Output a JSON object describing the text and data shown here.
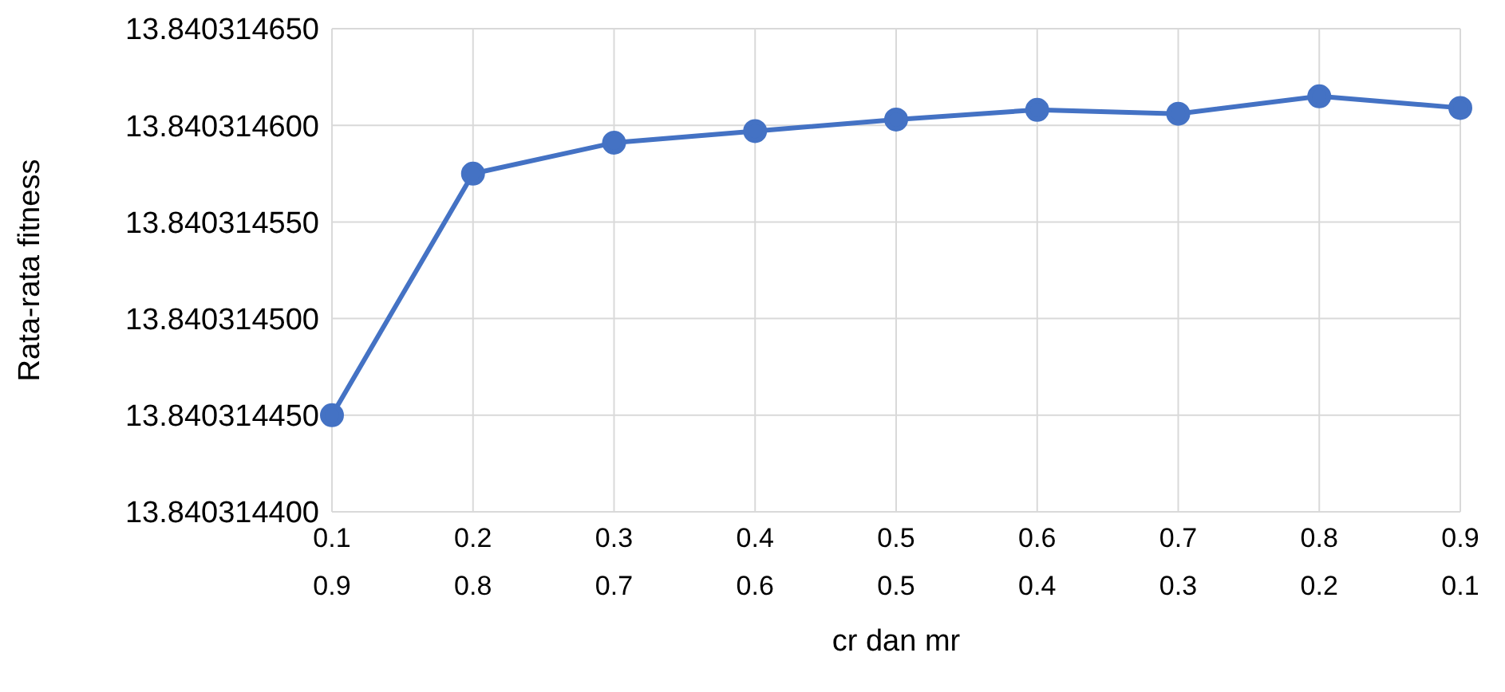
{
  "chart_data": {
    "type": "line",
    "xlabel": "cr dan mr",
    "ylabel": "Rata-rata fitness",
    "categories": [
      "0.1\n0.9",
      "0.2\n0.8",
      "0.3\n0.7",
      "0.4\n0.6",
      "0.5\n0.5",
      "0.6\n0.4",
      "0.7\n0.3",
      "0.8\n0.2",
      "0.9\n0.1"
    ],
    "series": [
      {
        "color": "#4472c4",
        "values": [
          13.84031445,
          13.840314575,
          13.840314591,
          13.840314597,
          13.840314603,
          13.840314608,
          13.840314606,
          13.840314615,
          13.840314609
        ]
      }
    ],
    "ylim": [
      13.8403144,
      13.84031465
    ],
    "yticks": [
      {
        "value": 13.8403144,
        "label": "13.840314400"
      },
      {
        "value": 13.84031445,
        "label": "13.840314450"
      },
      {
        "value": 13.8403145,
        "label": "13.840314500"
      },
      {
        "value": 13.84031455,
        "label": "13.840314550"
      },
      {
        "value": 13.8403146,
        "label": "13.840314600"
      },
      {
        "value": 13.84031465,
        "label": "13.840314650"
      }
    ],
    "grid": true,
    "marker": "circle",
    "line_style": "solid",
    "legend": false
  }
}
